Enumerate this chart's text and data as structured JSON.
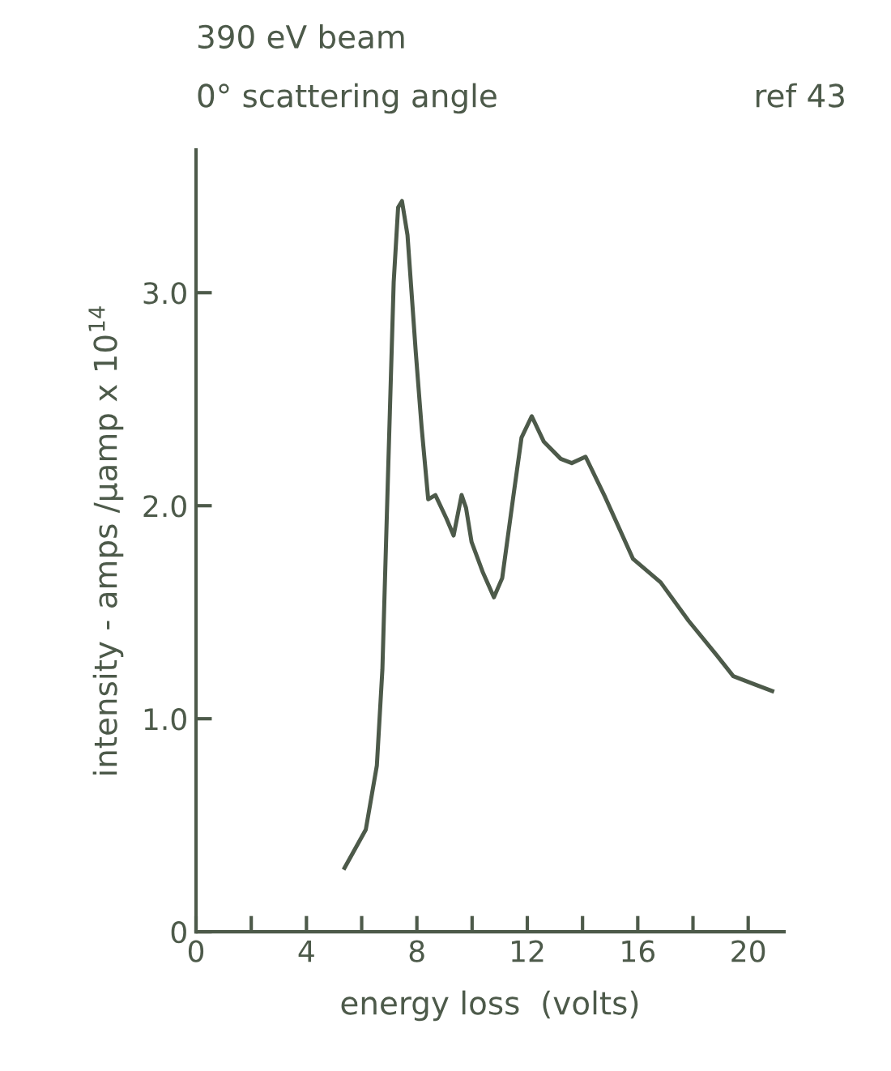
{
  "chart_data": {
    "type": "line",
    "xlabel": "energy loss  (volts)",
    "ylabel": "intensity - amps /μamp x 10$^{14}$",
    "annotations": [
      "390 eV beam",
      "0° scattering angle",
      "ref 43"
    ],
    "x": [
      5.38,
      6.15,
      6.55,
      6.75,
      6.96,
      7.16,
      7.32,
      7.46,
      7.66,
      7.96,
      8.17,
      8.41,
      8.67,
      9.07,
      9.33,
      9.62,
      9.78,
      9.98,
      10.38,
      10.79,
      11.09,
      11.49,
      11.79,
      12.16,
      12.6,
      13.21,
      13.61,
      14.11,
      14.82,
      15.83,
      16.83,
      17.84,
      18.85,
      19.46,
      20.26,
      20.87
    ],
    "series": [
      {
        "color": "#4d5a4a",
        "values": [
          0.3,
          0.48,
          0.78,
          1.23,
          2.17,
          3.05,
          3.4,
          3.43,
          3.27,
          2.72,
          2.37,
          2.03,
          2.05,
          1.94,
          1.86,
          2.05,
          1.99,
          1.83,
          1.69,
          1.57,
          1.66,
          2.04,
          2.32,
          2.42,
          2.3,
          2.22,
          2.2,
          2.23,
          2.04,
          1.75,
          1.64,
          1.46,
          1.3,
          1.2,
          1.16,
          1.13
        ]
      }
    ],
    "xlim": [
      0,
      21.3
    ],
    "ylim": [
      0,
      3.67
    ],
    "xticks": [
      0,
      {
        "value": 2,
        "label": null
      },
      4,
      {
        "value": 6,
        "label": null
      },
      8,
      {
        "value": 10,
        "label": null
      },
      12,
      {
        "value": 14,
        "label": null
      },
      16,
      {
        "value": 18,
        "label": null
      },
      20
    ],
    "yticks": [
      0,
      {
        "value": 1,
        "label": "1.0"
      },
      {
        "value": 2,
        "label": "2.0"
      },
      {
        "value": 3,
        "label": "3.0"
      }
    ],
    "grid": false,
    "legend": false,
    "marker": "none",
    "line_style": "solid"
  }
}
